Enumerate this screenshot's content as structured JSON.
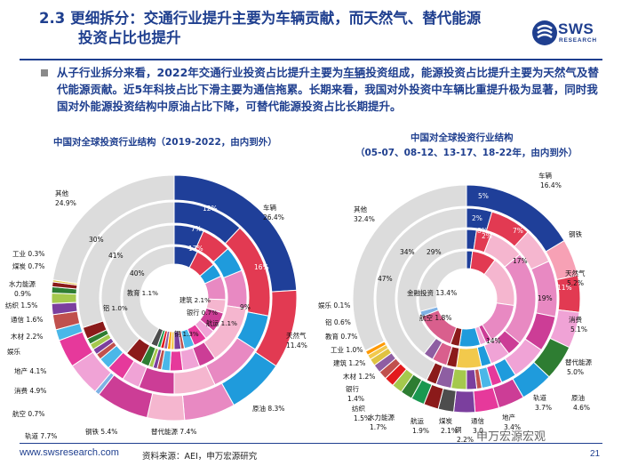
{
  "header": {
    "section_number": "2.3",
    "title_line1": "更细拆分：交通行业提升主要为车辆贡献，而天然气、替代能源",
    "title_line2": "投资占比也提升",
    "logo_text": "SWS",
    "logo_subtext": "RESEARCH"
  },
  "summary": {
    "part1": "从子行业拆分来看，2022年交通行业投资占比提升主要为",
    "part2": "车辆",
    "part3": "投资组成，能源投资占比提升主要为天然气及替代能源贡献。近5年科技占比下滑主要为通信拖累。长期来看，我国对外投资中车辆比重提升极为显著，同时我国对外能源投资结构中原油占比下降，可替代能源投资占比长期提升。"
  },
  "chart_data": [
    {
      "type": "pie",
      "subtype": "multi-ring donut",
      "title": "中国对全球投资行业结构（2019-2022，由内到外）",
      "categories": [
        "车辆",
        "天然气",
        "原油",
        "替代能源",
        "钢铁",
        "轨道",
        "航空",
        "消费",
        "地产",
        "娱乐",
        "木材",
        "通信",
        "纺织",
        "水力能源",
        "煤炭",
        "工业",
        "其他",
        "教育",
        "铝",
        "建筑",
        "银行",
        "航运",
        "铜"
      ],
      "outer_ring_labels": [
        {
          "name": "车辆",
          "value": "26.4%"
        },
        {
          "name": "天然气",
          "value": "11.4%"
        },
        {
          "name": "原油",
          "value": "8.3%"
        },
        {
          "name": "替代能源",
          "value": "7.4%"
        },
        {
          "name": "钢铁",
          "value": "5.4%"
        },
        {
          "name": "轨道",
          "value": "7.7%"
        },
        {
          "name": "航空",
          "value": "0.7%"
        },
        {
          "name": "消费",
          "value": "4.9%"
        },
        {
          "name": "地产",
          "value": "4.1%"
        },
        {
          "name": "娱乐",
          "value": ""
        },
        {
          "name": "木材",
          "value": "2.2%"
        },
        {
          "name": "通信",
          "value": "1.6%"
        },
        {
          "name": "纺织",
          "value": "1.5%"
        },
        {
          "name": "水力能源",
          "value": "0.9%"
        },
        {
          "name": "煤炭",
          "value": "0.7%"
        },
        {
          "name": "工业",
          "value": "0.3%"
        },
        {
          "name": "其他",
          "value": "24.9%"
        }
      ],
      "inner_labels": [
        {
          "name": "教育",
          "value": "1.1%"
        },
        {
          "name": "铝",
          "value": "1.0%"
        },
        {
          "name": "建筑",
          "value": "2.1%"
        },
        {
          "name": "银行",
          "value": "0.7%"
        },
        {
          "name": "航运",
          "value": "1.1%"
        },
        {
          "name": "铜",
          "value": "1.3%"
        }
      ],
      "ring_values": {
        "ring4_vehicle": "12%",
        "ring3_vehicle": "7%",
        "ring2_vehicle": "7%",
        "ring1_vehicle": "17%",
        "ring4_gas": "16%",
        "ring3_gas": "9%",
        "ring2_gas": "7%",
        "ring1_gas": "6%",
        "ring4_other": "30%",
        "ring3_other": "41%",
        "ring2_other": "40%"
      }
    },
    {
      "type": "pie",
      "subtype": "multi-ring donut",
      "title_line1": "中国对全球投资行业结构",
      "title_line2": "（05-07、08-12、13-17、18-22年，由内到外）",
      "outer_ring_labels": [
        {
          "name": "车辆",
          "value": "16.4%"
        },
        {
          "name": "钢铁",
          "value": ""
        },
        {
          "name": "天然气",
          "value": "5.2%"
        },
        {
          "name": "消费",
          "value": "5.1%"
        },
        {
          "name": "替代能源",
          "value": "5.0%"
        },
        {
          "name": "原油",
          "value": "4.6%"
        },
        {
          "name": "轨道",
          "value": "3.7%"
        },
        {
          "name": "地产",
          "value": "3.4%"
        },
        {
          "name": "通信",
          "value": "3.0"
        },
        {
          "name": "铜",
          "value": "2.2%"
        },
        {
          "name": "煤炭",
          "value": "2.1%"
        },
        {
          "name": "航运",
          "value": "1.9%"
        },
        {
          "name": "水力能源",
          "value": "1.7%"
        },
        {
          "name": "纺织",
          "value": "1.5%"
        },
        {
          "name": "银行",
          "value": "1.4%"
        },
        {
          "name": "木材",
          "value": "1.2%"
        },
        {
          "name": "建筑",
          "value": "1.2%"
        },
        {
          "name": "工业",
          "value": "1.0%"
        },
        {
          "name": "教育",
          "value": "0.7%"
        },
        {
          "name": "铝",
          "value": "0.6%"
        },
        {
          "name": "娱乐",
          "value": "0.1%"
        },
        {
          "name": "其他",
          "value": "32.4%"
        }
      ],
      "inner_labels": [
        {
          "name": "金融投资",
          "value": "13.4%"
        },
        {
          "name": "航空",
          "value": "1.8%"
        }
      ],
      "ring_values": {
        "other_47": "47%",
        "other_34": "34%",
        "other_29": "29%",
        "v1": "5%",
        "v2": "2%",
        "v3": "2%",
        "v4": "8%",
        "v5": "17%",
        "v6": "19%",
        "v7": "14%",
        "v8": "2%",
        "v9": "7%",
        "v10": "7%",
        "v11": "11%"
      }
    }
  ],
  "footer": {
    "url": "www.swsresearch.com",
    "source": "资料来源：AEI，申万宏源研究",
    "page": "21",
    "watermark": "申万宏源宏观"
  },
  "colors": {
    "navy": "#1f3f8f",
    "vehicle": "#1f3f99",
    "gas": "#e23a52",
    "oil": "#1f9bdc",
    "alt_energy": "#e889c2",
    "steel": "#f5b6cf",
    "rail": "#cc3d96",
    "other": "#dcdcdc"
  }
}
